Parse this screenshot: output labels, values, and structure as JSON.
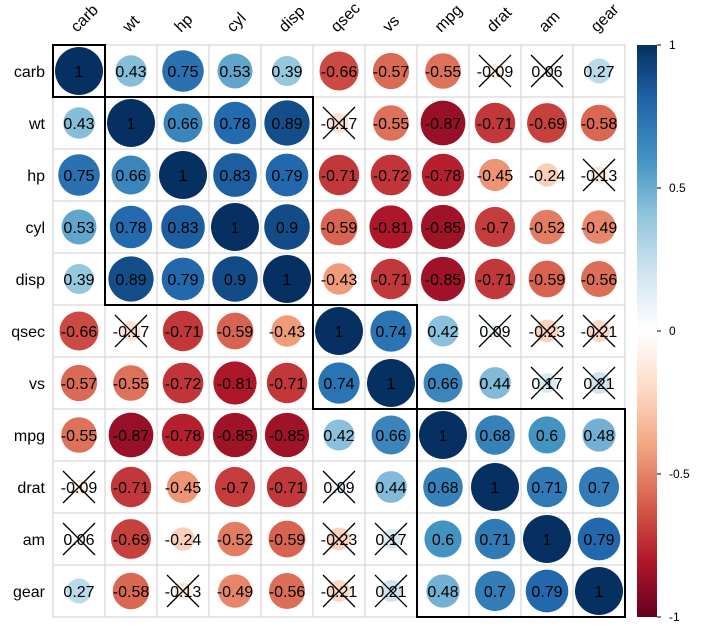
{
  "chart_data": {
    "type": "heatmap",
    "variables": [
      "carb",
      "wt",
      "hp",
      "cyl",
      "disp",
      "qsec",
      "vs",
      "mpg",
      "drat",
      "am",
      "gear"
    ],
    "matrix": [
      [
        1,
        0.43,
        0.75,
        0.53,
        0.39,
        -0.66,
        -0.57,
        -0.55,
        -0.09,
        0.06,
        0.27
      ],
      [
        0.43,
        1,
        0.66,
        0.78,
        0.89,
        -0.17,
        -0.55,
        -0.87,
        -0.71,
        -0.69,
        -0.58
      ],
      [
        0.75,
        0.66,
        1,
        0.83,
        0.79,
        -0.71,
        -0.72,
        -0.78,
        -0.45,
        -0.24,
        -0.13
      ],
      [
        0.53,
        0.78,
        0.83,
        1,
        0.9,
        -0.59,
        -0.81,
        -0.85,
        -0.7,
        -0.52,
        -0.49
      ],
      [
        0.39,
        0.89,
        0.79,
        0.9,
        1,
        -0.43,
        -0.71,
        -0.85,
        -0.71,
        -0.59,
        -0.56
      ],
      [
        -0.66,
        -0.17,
        -0.71,
        -0.59,
        -0.43,
        1,
        0.74,
        0.42,
        0.09,
        -0.23,
        -0.21
      ],
      [
        -0.57,
        -0.55,
        -0.72,
        -0.81,
        -0.71,
        0.74,
        1,
        0.66,
        0.44,
        0.17,
        0.21
      ],
      [
        -0.55,
        -0.87,
        -0.78,
        -0.85,
        -0.85,
        0.42,
        0.66,
        1,
        0.68,
        0.6,
        0.48
      ],
      [
        -0.09,
        -0.71,
        -0.45,
        -0.7,
        -0.71,
        0.09,
        0.44,
        0.68,
        1,
        0.71,
        0.7
      ],
      [
        0.06,
        -0.69,
        -0.24,
        -0.52,
        -0.59,
        -0.23,
        0.17,
        0.6,
        0.71,
        1,
        0.79
      ],
      [
        0.27,
        -0.58,
        -0.13,
        -0.49,
        -0.56,
        -0.21,
        0.21,
        0.48,
        0.7,
        0.79,
        1
      ]
    ],
    "labels": [
      [
        "1",
        "0.43",
        "0.75",
        "0.53",
        "0.39",
        "-0.66",
        "-0.57",
        "-0.55",
        "-0.09",
        "0.06",
        "0.27"
      ],
      [
        "0.43",
        "1",
        "0.66",
        "0.78",
        "0.89",
        "-0.17",
        "-0.55",
        "-0.87",
        "-0.71",
        "-0.69",
        "-0.58"
      ],
      [
        "0.75",
        "0.66",
        "1",
        "0.83",
        "0.79",
        "-0.71",
        "-0.72",
        "-0.78",
        "-0.45",
        "-0.24",
        "-0.13"
      ],
      [
        "0.53",
        "0.78",
        "0.83",
        "1",
        "0.9",
        "-0.59",
        "-0.81",
        "-0.85",
        "-0.7",
        "-0.52",
        "-0.49"
      ],
      [
        "0.39",
        "0.89",
        "0.79",
        "0.9",
        "1",
        "-0.43",
        "-0.71",
        "-0.85",
        "-0.71",
        "-0.59",
        "-0.56"
      ],
      [
        "-0.66",
        "-0.17",
        "-0.71",
        "-0.59",
        "-0.43",
        "1",
        "0.74",
        "0.42",
        "0.09",
        "-0.23",
        "-0.21"
      ],
      [
        "-0.57",
        "-0.55",
        "-0.72",
        "-0.81",
        "-0.71",
        "0.74",
        "1",
        "0.66",
        "0.44",
        "0.17",
        "0.21"
      ],
      [
        "-0.55",
        "-0.87",
        "-0.78",
        "-0.85",
        "-0.85",
        "0.42",
        "0.66",
        "1",
        "0.68",
        "0.6",
        "0.48"
      ],
      [
        "-0.09",
        "-0.71",
        "-0.45",
        "-0.7",
        "-0.71",
        "0.09",
        "0.44",
        "0.68",
        "1",
        "0.71",
        "0.7"
      ],
      [
        "0.06",
        "-0.69",
        "-0.24",
        "-0.52",
        "-0.59",
        "-0.23",
        "0.17",
        "0.6",
        "0.71",
        "1",
        "0.79"
      ],
      [
        "0.27",
        "-0.58",
        "-0.13",
        "-0.49",
        "-0.56",
        "-0.21",
        "0.21",
        "0.48",
        "0.7",
        "0.79",
        "1"
      ]
    ],
    "crossed": [
      [
        false,
        false,
        false,
        false,
        false,
        false,
        false,
        false,
        true,
        true,
        false
      ],
      [
        false,
        false,
        false,
        false,
        false,
        true,
        false,
        false,
        false,
        false,
        false
      ],
      [
        false,
        false,
        false,
        false,
        false,
        false,
        false,
        false,
        false,
        false,
        true
      ],
      [
        false,
        false,
        false,
        false,
        false,
        false,
        false,
        false,
        false,
        false,
        false
      ],
      [
        false,
        false,
        false,
        false,
        false,
        false,
        false,
        false,
        false,
        false,
        false
      ],
      [
        false,
        true,
        false,
        false,
        false,
        false,
        false,
        false,
        true,
        true,
        true
      ],
      [
        false,
        false,
        false,
        false,
        false,
        false,
        false,
        false,
        false,
        true,
        true
      ],
      [
        false,
        false,
        false,
        false,
        false,
        false,
        false,
        false,
        false,
        false,
        false
      ],
      [
        true,
        false,
        false,
        false,
        false,
        true,
        false,
        false,
        false,
        false,
        false
      ],
      [
        true,
        false,
        false,
        false,
        false,
        true,
        true,
        false,
        false,
        false,
        false
      ],
      [
        false,
        false,
        true,
        false,
        false,
        true,
        true,
        false,
        false,
        false,
        false
      ]
    ],
    "clusters": [
      {
        "vars": [
          "carb"
        ]
      },
      {
        "vars": [
          "wt",
          "hp",
          "cyl",
          "disp"
        ]
      },
      {
        "vars": [
          "qsec",
          "vs"
        ]
      },
      {
        "vars": [
          "mpg",
          "drat",
          "am",
          "gear"
        ]
      }
    ],
    "colorbar": {
      "range": [
        -1,
        1
      ],
      "tick_labels": [
        "1",
        "0.5",
        "0",
        "-0.5",
        "-1"
      ],
      "tick_values": [
        1,
        0.5,
        0,
        -0.5,
        -1
      ],
      "colors": [
        "#67001F",
        "#B2182B",
        "#D6604D",
        "#F4A582",
        "#FDDBC7",
        "#FFFFFF",
        "#D1E5F0",
        "#92C5DE",
        "#4393C3",
        "#2166AC",
        "#053061"
      ]
    }
  }
}
